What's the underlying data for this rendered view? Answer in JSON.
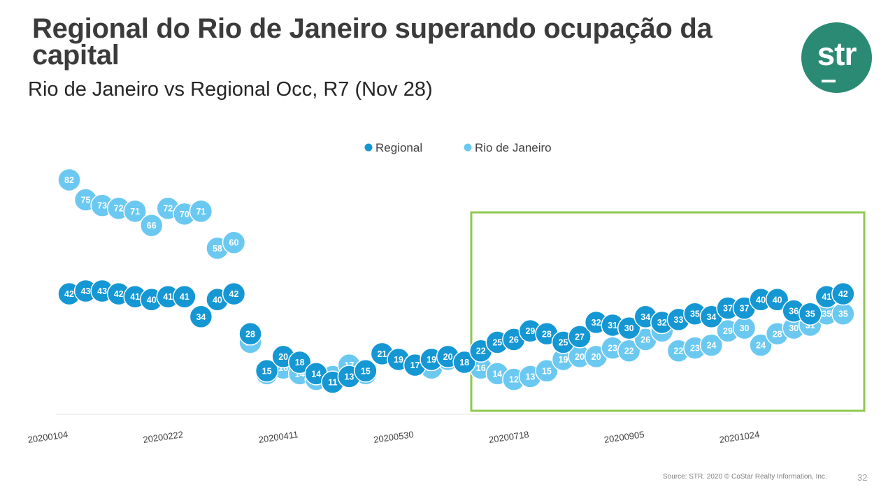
{
  "slide": {
    "title": "Regional do Rio de Janeiro superando ocupação da capital",
    "subtitle": "Rio de Janeiro vs Regional Occ, R7 (Nov 28)",
    "source": "Source: STR. 2020 © CoStar Realty Information, Inc.",
    "page_number": "32",
    "logo_text": "str"
  },
  "colors": {
    "regional": "#1597d4",
    "rio": "#6bc9f1",
    "highlight_box": "#8fc850",
    "logo_bg": "#2a8a73"
  },
  "chart_data": {
    "type": "scatter",
    "legend_position": "top-center",
    "grid": false,
    "ylim": [
      0,
      95
    ],
    "x_tick_labels": [
      "20200104",
      "20200222",
      "20200411",
      "20200530",
      "20200718",
      "20200905",
      "20201024"
    ],
    "x_tick_every": 7,
    "highlight_range": [
      "20200711",
      "20201128"
    ],
    "series": [
      {
        "name": "Regional",
        "values": [
          42,
          43,
          43,
          42,
          41,
          40,
          41,
          41,
          34,
          40,
          42,
          28,
          15,
          20,
          18,
          14,
          11,
          13,
          15,
          21,
          19,
          17,
          19,
          20,
          18,
          22,
          25,
          26,
          29,
          28,
          25,
          27,
          32,
          31,
          30,
          34,
          32,
          33,
          35,
          34,
          37,
          37,
          40,
          40,
          36,
          35,
          41,
          42
        ]
      },
      {
        "name": "Rio de Janeiro",
        "values": [
          82,
          75,
          73,
          72,
          71,
          66,
          72,
          70,
          71,
          58,
          60,
          25,
          14,
          16,
          14,
          12,
          13,
          17,
          14,
          21,
          19,
          17,
          16,
          19,
          18,
          16,
          14,
          12,
          13,
          15,
          19,
          20,
          20,
          23,
          22,
          26,
          29,
          22,
          23,
          24,
          29,
          30,
          24,
          28,
          30,
          31,
          35,
          35
        ]
      }
    ]
  }
}
